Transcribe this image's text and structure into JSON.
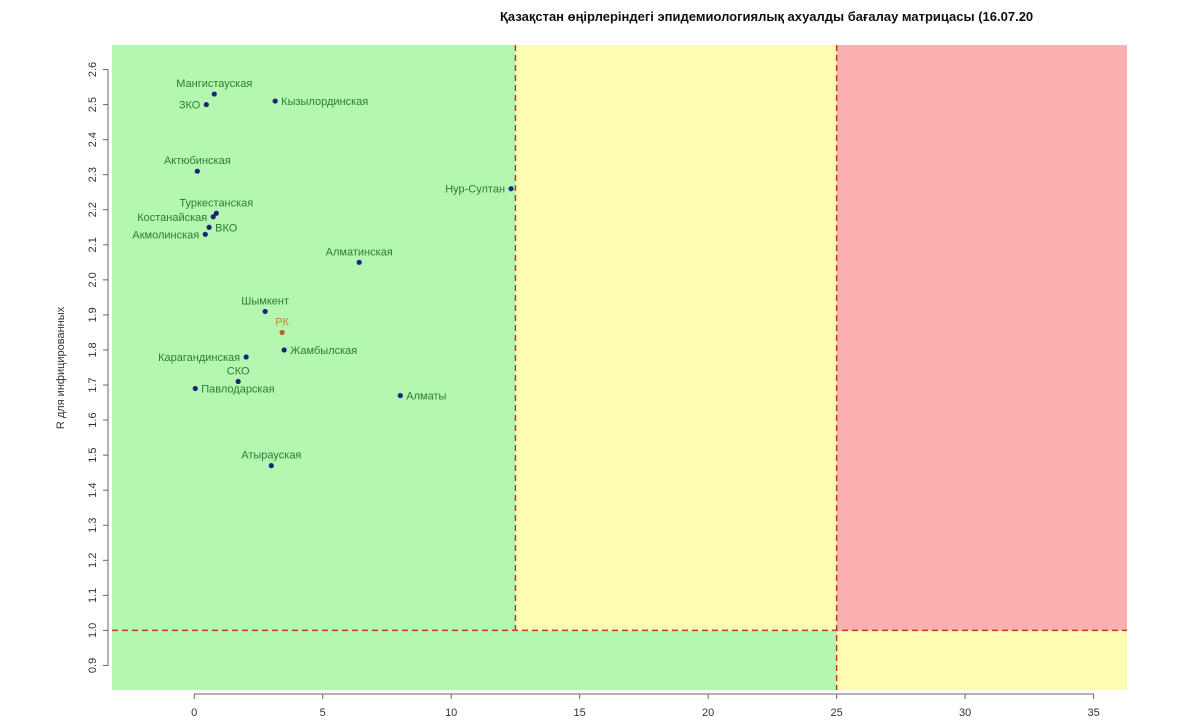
{
  "chart_data": {
    "type": "scatter",
    "title": "Қазақстан өңірлеріндегі эпидемиологиялық ахуалды бағалау матрицасы  (16.07.20",
    "xlabel": "",
    "ylabel": "R для инфицированных",
    "xlim": [
      -3.2,
      36.3
    ],
    "ylim": [
      0.83,
      2.67
    ],
    "xticks": [
      0,
      5,
      10,
      15,
      20,
      25,
      30,
      35
    ],
    "yticks": [
      0.9,
      1.0,
      1.1,
      1.2,
      1.3,
      1.4,
      1.5,
      1.6,
      1.7,
      1.8,
      1.9,
      2.0,
      2.1,
      2.2,
      2.3,
      2.4,
      2.5,
      2.6
    ],
    "thresholds": {
      "x_low": 12.5,
      "x_high": 25,
      "y": 1.0
    },
    "zone_colors": {
      "green": "#b3f7b0",
      "yellow": "#fefcb0",
      "red": "#fdb0b0",
      "line": "#c0392b"
    },
    "grid": false,
    "points": [
      {
        "name": "Мангистауская",
        "x": 0.78,
        "y": 2.53,
        "pos": "top",
        "color": "#1a237e"
      },
      {
        "name": "ЗКО",
        "x": 0.47,
        "y": 2.5,
        "pos": "left",
        "color": "#1a237e"
      },
      {
        "name": "Кызылординская",
        "x": 3.15,
        "y": 2.51,
        "pos": "right",
        "color": "#1a237e"
      },
      {
        "name": "Актюбинская",
        "x": 0.12,
        "y": 2.31,
        "pos": "top",
        "color": "#1a237e"
      },
      {
        "name": "Туркестанская",
        "x": 0.86,
        "y": 2.19,
        "pos": "top",
        "color": "#1a237e"
      },
      {
        "name": "Костанайская",
        "x": 0.74,
        "y": 2.18,
        "pos": "left",
        "color": "#1a237e"
      },
      {
        "name": "ВКО",
        "x": 0.58,
        "y": 2.15,
        "pos": "right",
        "color": "#1a237e"
      },
      {
        "name": "Акмолинская",
        "x": 0.43,
        "y": 2.13,
        "pos": "left",
        "color": "#1a237e"
      },
      {
        "name": "Нур-Султан",
        "x": 12.33,
        "y": 2.26,
        "pos": "left",
        "color": "#1a237e"
      },
      {
        "name": "Алматинская",
        "x": 6.42,
        "y": 2.05,
        "pos": "top",
        "color": "#1a237e"
      },
      {
        "name": "Шымкент",
        "x": 2.76,
        "y": 1.91,
        "pos": "top",
        "color": "#1a237e"
      },
      {
        "name": "РК",
        "x": 3.42,
        "y": 1.85,
        "pos": "top",
        "color": "#b5651d"
      },
      {
        "name": "Жамбылская",
        "x": 3.5,
        "y": 1.8,
        "pos": "right",
        "color": "#1a237e"
      },
      {
        "name": "Карагандинская",
        "x": 2.02,
        "y": 1.78,
        "pos": "left",
        "color": "#1a237e"
      },
      {
        "name": "СКО",
        "x": 1.71,
        "y": 1.71,
        "pos": "top",
        "color": "#1a237e"
      },
      {
        "name": "Павлодарская",
        "x": 0.04,
        "y": 1.69,
        "pos": "right",
        "color": "#1a237e"
      },
      {
        "name": "Алматы",
        "x": 8.02,
        "y": 1.67,
        "pos": "right",
        "color": "#1a237e"
      },
      {
        "name": "Атырауская",
        "x": 3.0,
        "y": 1.47,
        "pos": "top",
        "color": "#1a237e"
      }
    ]
  }
}
